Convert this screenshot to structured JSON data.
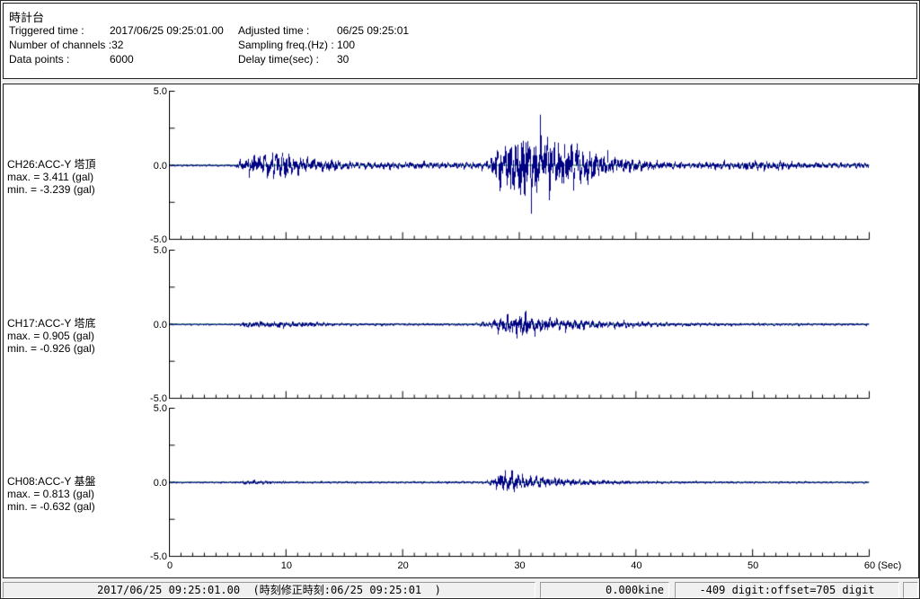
{
  "window": {
    "bg": "#f0f0f0",
    "panel_bg": "#ffffff",
    "border_color": "#222222"
  },
  "header": {
    "title": "時計台",
    "fields_left": [
      {
        "label": "Triggered time :",
        "value": "2017/06/25 09:25:01.00"
      },
      {
        "label": "Number of channels :",
        "value": "32"
      },
      {
        "label": "Data points :",
        "value": "6000"
      }
    ],
    "fields_right": [
      {
        "label": "Adjusted time :",
        "value": "06/25 09:25:01"
      },
      {
        "label": "Sampling freq.(Hz) :",
        "value": "100"
      },
      {
        "label": "Delay time(sec) :",
        "value": "30"
      }
    ]
  },
  "status_bar": {
    "time_text": "2017/06/25 09:25:01.00  (時刻修正時刻:06/25 09:25:01  )",
    "kine_text": "0.000kine",
    "digit_text": "-409 digit:offset=705 digit"
  },
  "chart_data": {
    "type": "line",
    "x_label": "(Sec)",
    "x_range": [
      0,
      60
    ],
    "x_major_ticks": [
      0,
      10,
      20,
      30,
      40,
      50,
      60
    ],
    "x_minor_step": 1,
    "y_range": [
      -5.0,
      5.0
    ],
    "y_tick_values": [
      5,
      2.5,
      0,
      -2.5,
      -5
    ],
    "y_tick_labels": [
      {
        "value": 5,
        "text": "5.0"
      },
      {
        "value": 0,
        "text": "0.0"
      },
      {
        "value": -5,
        "text": "-5.0"
      }
    ],
    "sampling_hz": 100,
    "duration_sec": 60,
    "trace_color": "#000085",
    "baseline_color": "#008040",
    "axis_color": "#000000",
    "channels": [
      {
        "name": "CH26:ACC-Y 塔頂",
        "max_text": "max. = 3.411 (gal)",
        "min_text": "min. = -3.239 (gal)",
        "max": 3.411,
        "min": -3.239,
        "seed": 26,
        "envelope": [
          [
            0,
            0.08
          ],
          [
            5.5,
            0.09
          ],
          [
            6.2,
            0.6
          ],
          [
            7,
            0.95
          ],
          [
            8.5,
            1.1
          ],
          [
            9.5,
            1.25
          ],
          [
            10.5,
            0.95
          ],
          [
            12,
            0.75
          ],
          [
            13.5,
            0.55
          ],
          [
            15,
            0.38
          ],
          [
            18,
            0.35
          ],
          [
            22,
            0.32
          ],
          [
            26,
            0.3
          ],
          [
            27.5,
            0.45
          ],
          [
            28.3,
            1.8
          ],
          [
            29.2,
            2.6
          ],
          [
            30.2,
            3.1
          ],
          [
            31,
            3.35
          ],
          [
            31.8,
            3.0
          ],
          [
            33,
            2.5
          ],
          [
            34.5,
            2.0
          ],
          [
            36,
            1.5
          ],
          [
            37.5,
            1.05
          ],
          [
            39,
            0.7
          ],
          [
            40.5,
            0.5
          ],
          [
            42,
            0.38
          ],
          [
            45,
            0.3
          ],
          [
            48,
            0.33
          ],
          [
            50,
            0.4
          ],
          [
            52,
            0.38
          ],
          [
            54,
            0.3
          ],
          [
            57,
            0.25
          ],
          [
            60,
            0.25
          ]
        ]
      },
      {
        "name": "CH17:ACC-Y 塔底",
        "max_text": "max. = 0.905 (gal)",
        "min_text": "min. = -0.926 (gal)",
        "max": 0.905,
        "min": -0.926,
        "seed": 17,
        "envelope": [
          [
            0,
            0.05
          ],
          [
            5.5,
            0.06
          ],
          [
            6.5,
            0.2
          ],
          [
            7.5,
            0.28
          ],
          [
            9,
            0.25
          ],
          [
            11,
            0.2
          ],
          [
            13,
            0.14
          ],
          [
            15,
            0.1
          ],
          [
            20,
            0.09
          ],
          [
            26,
            0.09
          ],
          [
            27.5,
            0.25
          ],
          [
            28.5,
            0.7
          ],
          [
            29.5,
            0.92
          ],
          [
            30.5,
            0.85
          ],
          [
            31.5,
            0.7
          ],
          [
            33,
            0.55
          ],
          [
            34.5,
            0.5
          ],
          [
            36,
            0.35
          ],
          [
            38,
            0.28
          ],
          [
            40,
            0.22
          ],
          [
            42,
            0.18
          ],
          [
            45,
            0.13
          ],
          [
            48,
            0.1
          ],
          [
            52,
            0.1
          ],
          [
            56,
            0.09
          ],
          [
            60,
            0.08
          ]
        ]
      },
      {
        "name": "CH08:ACC-Y 基盤",
        "max_text": "max. = 0.813 (gal)",
        "min_text": "min. = -0.632 (gal)",
        "max": 0.813,
        "min": -0.632,
        "seed": 8,
        "envelope": [
          [
            0,
            0.04
          ],
          [
            5.8,
            0.05
          ],
          [
            6.6,
            0.14
          ],
          [
            7.6,
            0.12
          ],
          [
            9,
            0.08
          ],
          [
            12,
            0.06
          ],
          [
            20,
            0.05
          ],
          [
            27,
            0.06
          ],
          [
            28,
            0.35
          ],
          [
            28.7,
            0.8
          ],
          [
            29.3,
            0.65
          ],
          [
            30,
            0.5
          ],
          [
            31,
            0.4
          ],
          [
            32,
            0.35
          ],
          [
            33.5,
            0.25
          ],
          [
            35,
            0.18
          ],
          [
            36.5,
            0.15
          ],
          [
            38,
            0.12
          ],
          [
            40,
            0.09
          ],
          [
            43,
            0.07
          ],
          [
            46,
            0.06
          ],
          [
            50,
            0.06
          ],
          [
            55,
            0.05
          ],
          [
            60,
            0.05
          ]
        ]
      }
    ]
  }
}
